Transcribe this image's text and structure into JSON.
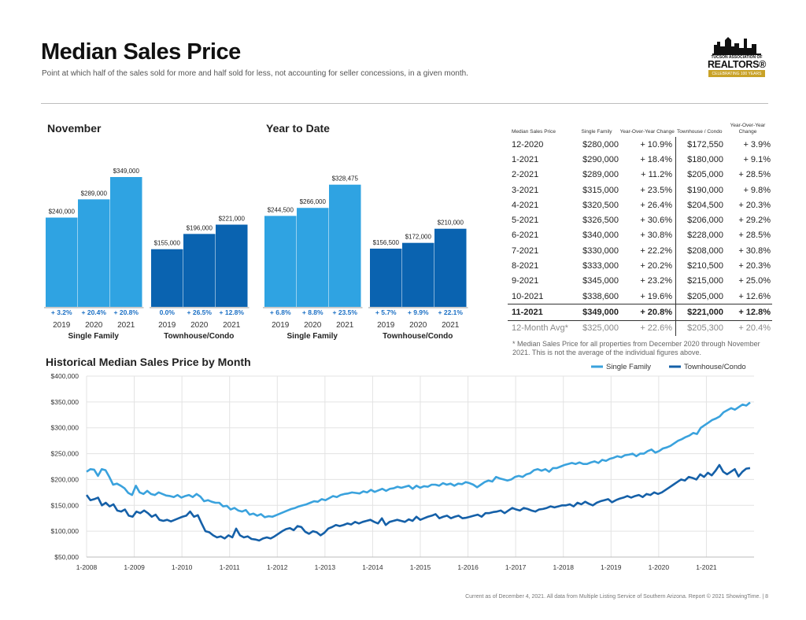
{
  "title": "Median Sales Price",
  "subtitle": "Point at which half of the sales sold for more and half sold for less, not accounting for seller concessions, in a given month.",
  "logo": {
    "line1": "TUCSON ASSOCIATION OF",
    "line2": "REALTORS®",
    "line3": "CELEBRATING 100 YEARS"
  },
  "colors": {
    "single_family": "#2fa3e2",
    "townhouse": "#0a63b0",
    "single_family_line": "#3aa2dd",
    "townhouse_line": "#1560a8"
  },
  "table": {
    "headers": [
      "Median Sales Price",
      "Single Family",
      "Year-Over-Year Change",
      "Townhouse / Condo",
      "Year-Over-Year Change"
    ],
    "rows": [
      [
        "12-2020",
        "$280,000",
        "+ 10.9%",
        "$172,550",
        "+ 3.9%"
      ],
      [
        "1-2021",
        "$290,000",
        "+ 18.4%",
        "$180,000",
        "+ 9.1%"
      ],
      [
        "2-2021",
        "$289,000",
        "+ 11.2%",
        "$205,000",
        "+ 28.5%"
      ],
      [
        "3-2021",
        "$315,000",
        "+ 23.5%",
        "$190,000",
        "+ 9.8%"
      ],
      [
        "4-2021",
        "$320,500",
        "+ 26.4%",
        "$204,500",
        "+ 20.3%"
      ],
      [
        "5-2021",
        "$326,500",
        "+ 30.6%",
        "$206,000",
        "+ 29.2%"
      ],
      [
        "6-2021",
        "$340,000",
        "+ 30.8%",
        "$228,000",
        "+ 28.5%"
      ],
      [
        "7-2021",
        "$330,000",
        "+ 22.2%",
        "$208,000",
        "+ 30.8%"
      ],
      [
        "8-2021",
        "$333,000",
        "+ 20.2%",
        "$210,500",
        "+ 20.3%"
      ],
      [
        "9-2021",
        "$345,000",
        "+ 23.2%",
        "$215,000",
        "+ 25.0%"
      ],
      [
        "10-2021",
        "$338,600",
        "+ 19.6%",
        "$205,000",
        "+ 12.6%"
      ]
    ],
    "bold_row": [
      "11-2021",
      "$349,000",
      "+ 20.8%",
      "$221,000",
      "+ 12.8%"
    ],
    "avg_row": [
      "12-Month Avg*",
      "$325,000",
      "+ 22.6%",
      "$205,300",
      "+ 20.4%"
    ]
  },
  "note": "* Median Sales Price for all properties from December 2020 through November 2021. This is not the average of the individual figures above.",
  "footer": "Current as of December 4, 2021. All data from Multiple Listing Service of Southern Arizona. Report © 2021 ShowingTime. | 8",
  "chart_data": [
    {
      "type": "bar",
      "title": "November",
      "groups": [
        {
          "name": "Single Family",
          "categories": [
            "2019",
            "2020",
            "2021"
          ],
          "values": [
            240000,
            289000,
            349000
          ],
          "labels": [
            "$240,000",
            "$289,000",
            "$349,000"
          ],
          "changes": [
            "+ 3.2%",
            "+ 20.4%",
            "+ 20.8%"
          ]
        },
        {
          "name": "Townhouse/Condo",
          "categories": [
            "2019",
            "2020",
            "2021"
          ],
          "values": [
            155000,
            196000,
            221000
          ],
          "labels": [
            "$155,000",
            "$196,000",
            "$221,000"
          ],
          "changes": [
            "0.0%",
            "+ 26.5%",
            "+ 12.8%"
          ]
        }
      ]
    },
    {
      "type": "bar",
      "title": "Year to Date",
      "groups": [
        {
          "name": "Single Family",
          "categories": [
            "2019",
            "2020",
            "2021"
          ],
          "values": [
            244500,
            266000,
            328475
          ],
          "labels": [
            "$244,500",
            "$266,000",
            "$328,475"
          ],
          "changes": [
            "+ 6.8%",
            "+ 8.8%",
            "+ 23.5%"
          ]
        },
        {
          "name": "Townhouse/Condo",
          "categories": [
            "2019",
            "2020",
            "2021"
          ],
          "values": [
            156500,
            172000,
            210000
          ],
          "labels": [
            "$156,500",
            "$172,000",
            "$210,000"
          ],
          "changes": [
            "+ 5.7%",
            "+ 9.9%",
            "+ 22.1%"
          ]
        }
      ]
    },
    {
      "type": "line",
      "title": "Historical Median Sales Price by Month",
      "x_ticks": [
        "1-2008",
        "1-2009",
        "1-2010",
        "1-2011",
        "1-2012",
        "1-2013",
        "1-2014",
        "1-2015",
        "1-2016",
        "1-2017",
        "1-2018",
        "1-2019",
        "1-2020",
        "1-2021"
      ],
      "y_ticks": [
        "$400,000",
        "$350,000",
        "$300,000",
        "$250,000",
        "$200,000",
        "$150,000",
        "$100,000",
        "$50,000"
      ],
      "ylim": [
        50000,
        400000
      ],
      "grid": true,
      "legend": "top-right",
      "series": [
        {
          "name": "Single Family",
          "start": "2008-01",
          "values": [
            215000,
            220000,
            219000,
            207000,
            220000,
            218000,
            205000,
            190000,
            192000,
            188000,
            183000,
            174000,
            170000,
            188000,
            175000,
            172000,
            178000,
            172000,
            170000,
            175000,
            172000,
            169000,
            168000,
            166000,
            170000,
            165000,
            168000,
            170000,
            166000,
            172000,
            167000,
            158000,
            160000,
            157000,
            155000,
            155000,
            148000,
            149000,
            142000,
            145000,
            140000,
            138000,
            141000,
            132000,
            134000,
            130000,
            133000,
            127000,
            129000,
            128000,
            131000,
            134000,
            137000,
            140000,
            143000,
            145000,
            148000,
            150000,
            152000,
            155000,
            158000,
            157000,
            162000,
            160000,
            164000,
            168000,
            166000,
            170000,
            172000,
            173000,
            175000,
            174000,
            173000,
            177000,
            175000,
            180000,
            176000,
            179000,
            182000,
            178000,
            182000,
            183000,
            186000,
            184000,
            186000,
            188000,
            182000,
            188000,
            184000,
            187000,
            186000,
            190000,
            190000,
            188000,
            193000,
            190000,
            192000,
            188000,
            192000,
            191000,
            195000,
            193000,
            190000,
            185000,
            190000,
            195000,
            198000,
            196000,
            205000,
            202000,
            200000,
            198000,
            200000,
            205000,
            207000,
            205000,
            210000,
            212000,
            218000,
            220000,
            217000,
            220000,
            215000,
            222000,
            222000,
            225000,
            228000,
            230000,
            232000,
            230000,
            233000,
            230000,
            230000,
            233000,
            235000,
            232000,
            238000,
            236000,
            240000,
            242000,
            245000,
            243000,
            247000,
            248000,
            250000,
            245000,
            250000,
            250000,
            255000,
            258000,
            252000,
            255000,
            260000,
            262000,
            265000,
            270000,
            275000,
            278000,
            282000,
            285000,
            290000,
            288000,
            300000,
            305000,
            310000,
            315000,
            318000,
            322000,
            330000,
            334000,
            338000,
            335000,
            340000,
            345000,
            343000,
            349000
          ]
        },
        {
          "name": "Townhouse/Condo",
          "start": "2008-01",
          "values": [
            170000,
            160000,
            162000,
            165000,
            150000,
            155000,
            148000,
            152000,
            140000,
            138000,
            142000,
            130000,
            128000,
            138000,
            135000,
            140000,
            135000,
            128000,
            132000,
            122000,
            120000,
            122000,
            119000,
            122000,
            125000,
            128000,
            130000,
            138000,
            128000,
            131000,
            115000,
            100000,
            98000,
            92000,
            88000,
            90000,
            86000,
            92000,
            88000,
            105000,
            92000,
            88000,
            90000,
            85000,
            84000,
            82000,
            86000,
            88000,
            86000,
            90000,
            95000,
            100000,
            104000,
            106000,
            102000,
            110000,
            108000,
            99000,
            95000,
            100000,
            98000,
            92000,
            97000,
            105000,
            108000,
            112000,
            110000,
            112000,
            115000,
            113000,
            118000,
            115000,
            118000,
            120000,
            122000,
            118000,
            115000,
            125000,
            112000,
            118000,
            120000,
            122000,
            120000,
            118000,
            123000,
            120000,
            128000,
            122000,
            125000,
            128000,
            130000,
            133000,
            125000,
            128000,
            130000,
            125000,
            128000,
            130000,
            125000,
            126000,
            128000,
            130000,
            132000,
            128000,
            135000,
            135000,
            137000,
            138000,
            140000,
            135000,
            140000,
            145000,
            142000,
            140000,
            145000,
            143000,
            140000,
            138000,
            142000,
            143000,
            145000,
            148000,
            146000,
            148000,
            150000,
            150000,
            152000,
            148000,
            155000,
            152000,
            157000,
            153000,
            150000,
            155000,
            158000,
            160000,
            162000,
            156000,
            160000,
            163000,
            165000,
            168000,
            165000,
            168000,
            170000,
            166000,
            172000,
            170000,
            175000,
            172000,
            175000,
            180000,
            185000,
            190000,
            195000,
            200000,
            198000,
            205000,
            203000,
            200000,
            210000,
            205000,
            213000,
            208000,
            217000,
            228000,
            215000,
            210000,
            215000,
            220000,
            206000,
            215000,
            221000,
            222000
          ]
        }
      ]
    }
  ]
}
